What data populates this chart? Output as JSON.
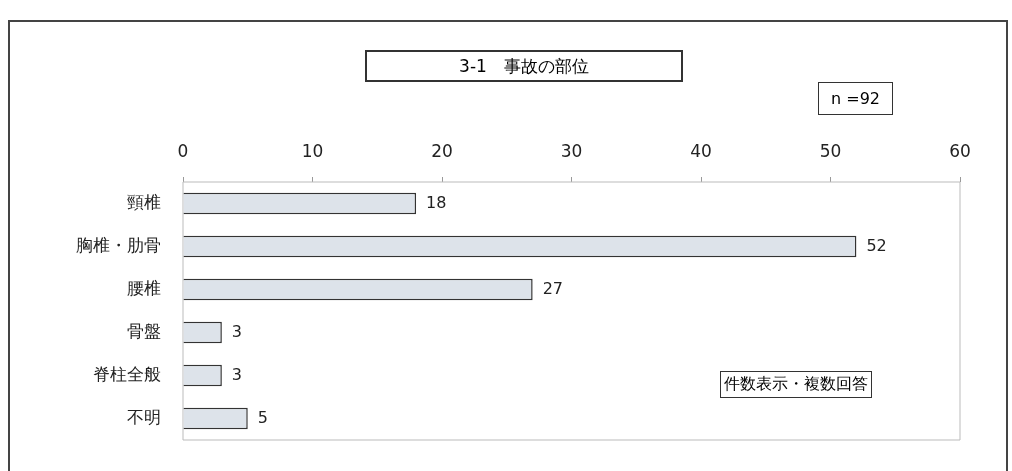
{
  "chart_data": {
    "type": "bar",
    "orientation": "horizontal",
    "title": "3-1　事故の部位",
    "categories": [
      "頸椎",
      "胸椎・肋骨",
      "腰椎",
      "骨盤",
      "脊柱全般",
      "不明"
    ],
    "values": [
      18,
      52,
      27,
      3,
      3,
      5
    ],
    "color": "#dde3ea",
    "xlim": [
      0,
      60
    ],
    "xticks": [
      0,
      10,
      20,
      30,
      40,
      50,
      60
    ],
    "data_labels": true,
    "annotations": [
      "n =92",
      "件数表示・複数回答"
    ]
  }
}
